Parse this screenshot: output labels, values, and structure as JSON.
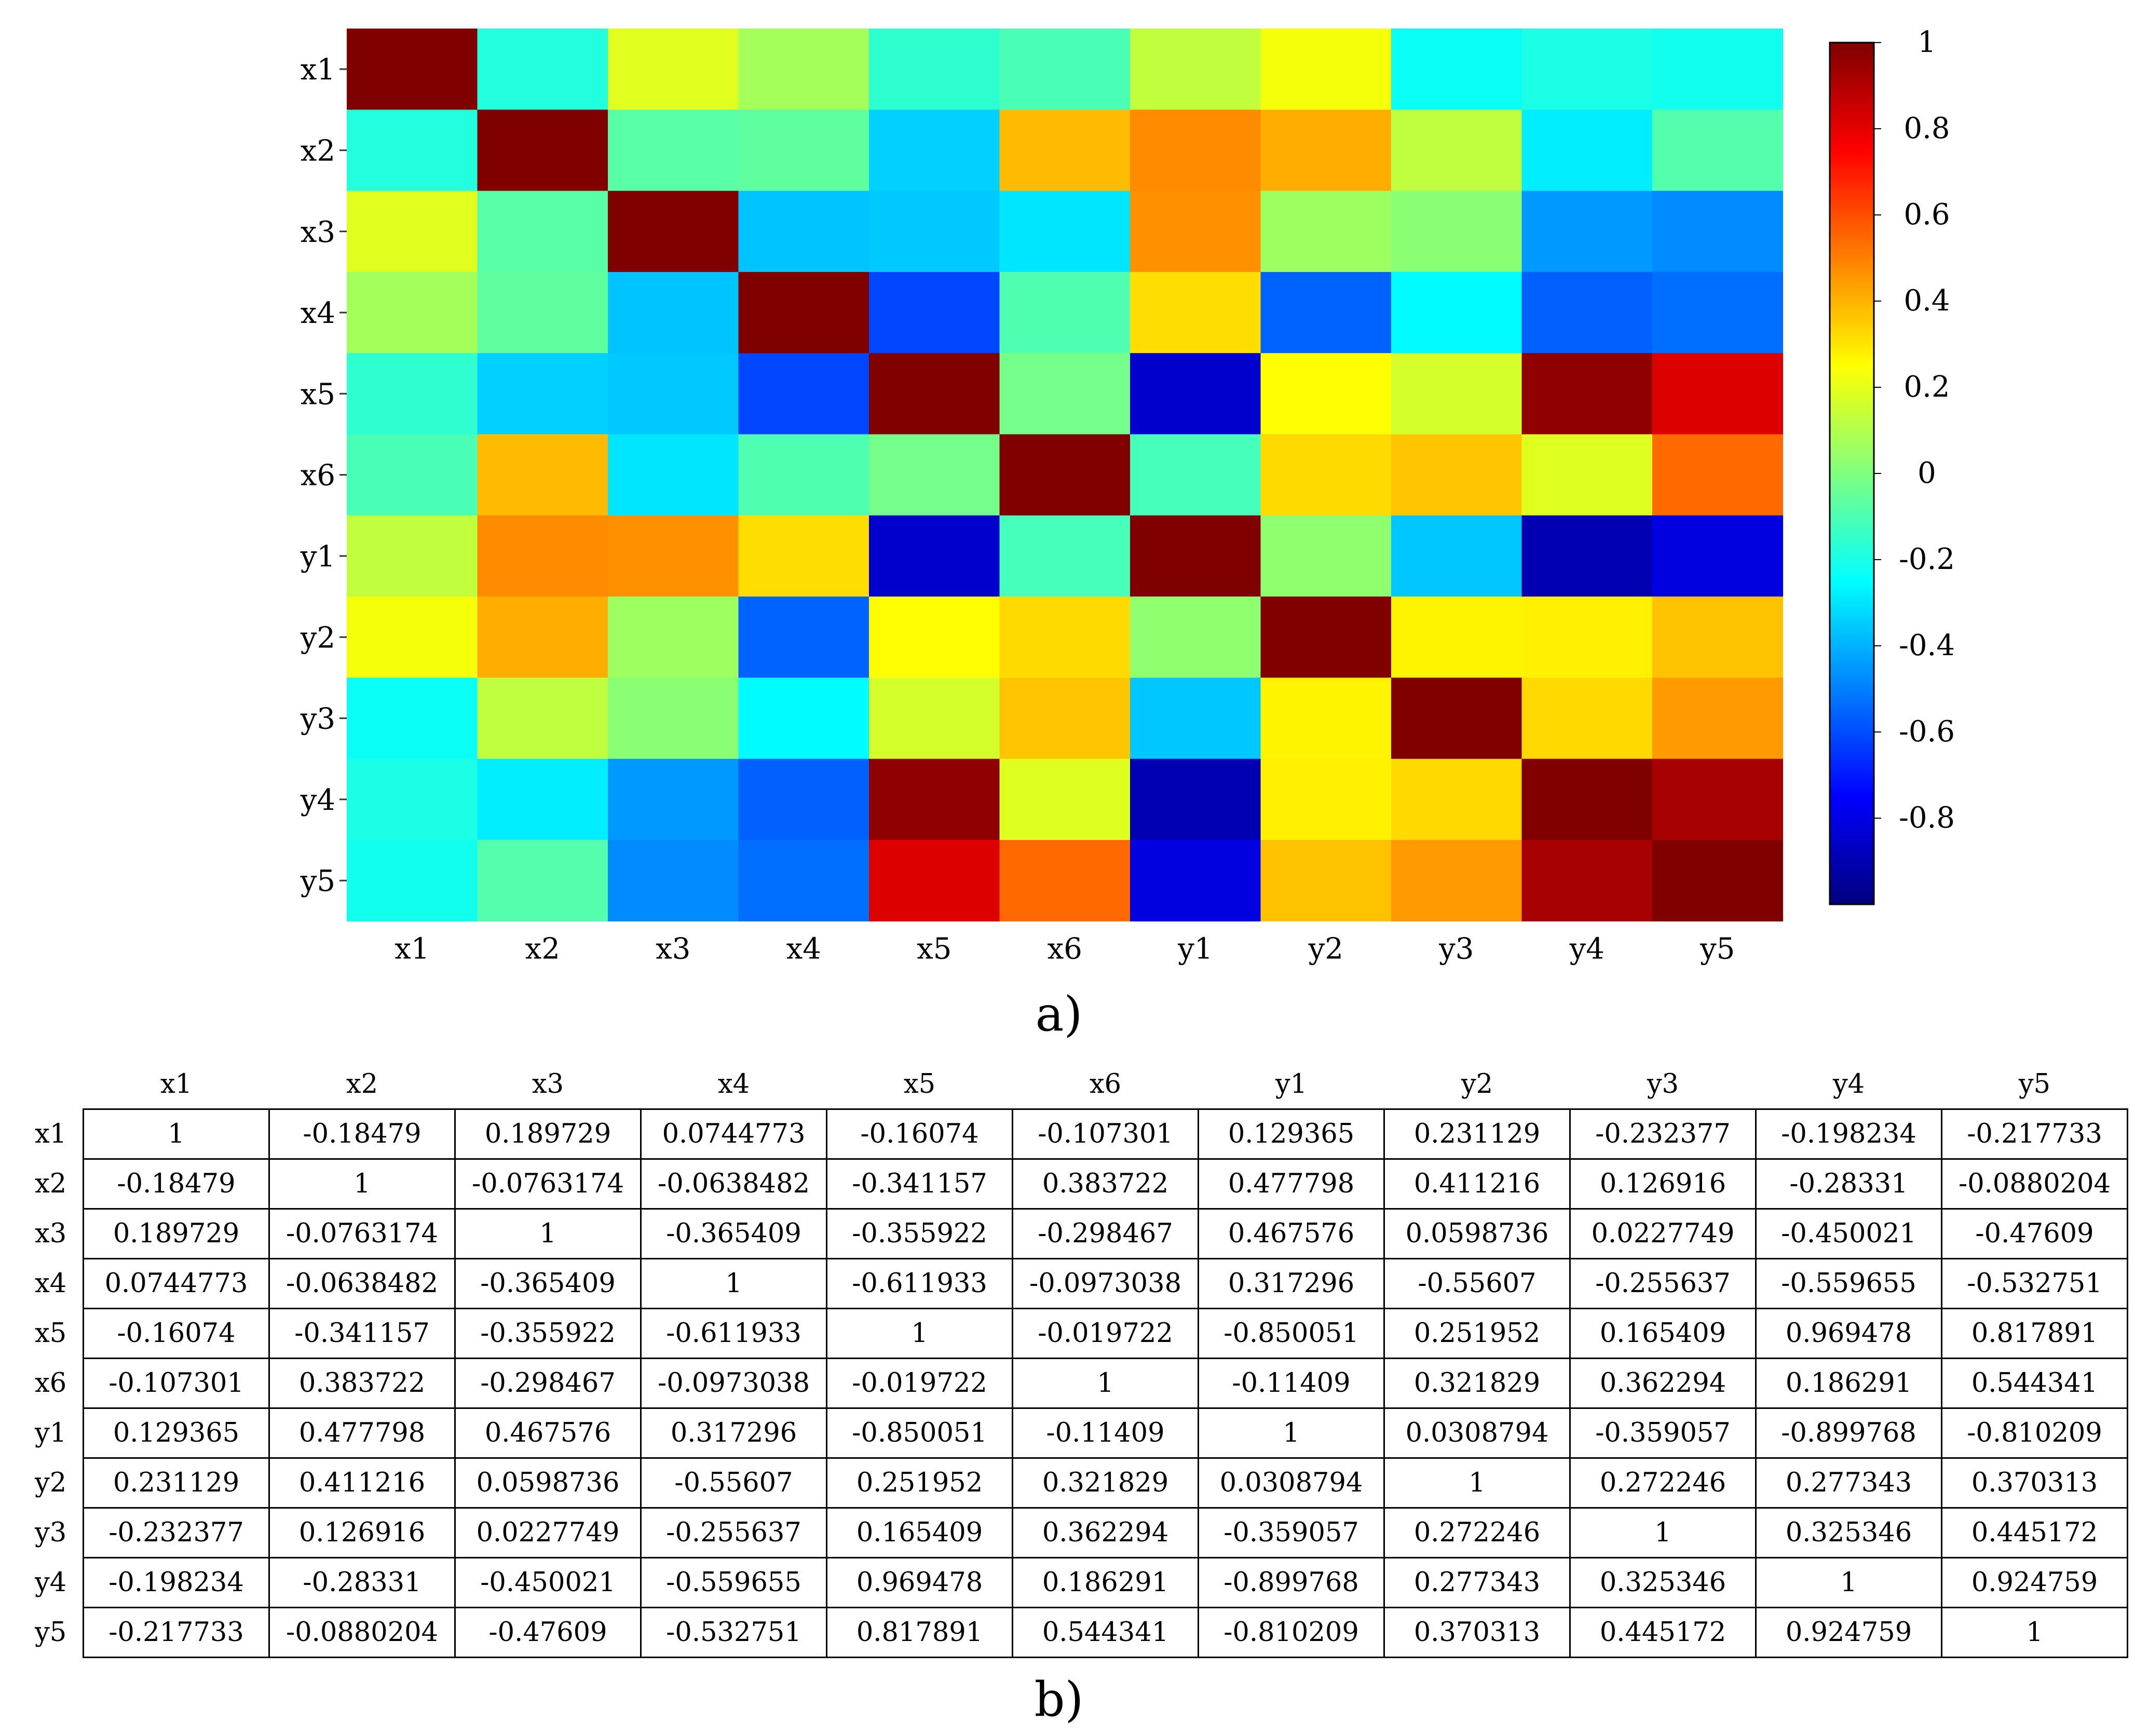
{
  "captions": {
    "a": "a)",
    "b": "b)"
  },
  "chart_data": [
    {
      "type": "heatmap",
      "title": "",
      "xlabel": "",
      "ylabel": "",
      "x_categories": [
        "x1",
        "x2",
        "x3",
        "x4",
        "x5",
        "x6",
        "y1",
        "y2",
        "y3",
        "y4",
        "y5"
      ],
      "y_categories": [
        "x1",
        "x2",
        "x3",
        "x4",
        "x5",
        "x6",
        "y1",
        "y2",
        "y3",
        "y4",
        "y5"
      ],
      "colormap": "jet",
      "color_range": [
        -1,
        1
      ],
      "colorbar_ticks": [
        {
          "value": 1,
          "label": "1"
        },
        {
          "value": 0.8,
          "label": "0.8"
        },
        {
          "value": 0.6,
          "label": "0.6"
        },
        {
          "value": 0.4,
          "label": "0.4"
        },
        {
          "value": 0.2,
          "label": "0.2"
        },
        {
          "value": 0,
          "label": "0"
        },
        {
          "value": -0.2,
          "label": "-0.2"
        },
        {
          "value": -0.4,
          "label": "-0.4"
        },
        {
          "value": -0.6,
          "label": "-0.6"
        },
        {
          "value": -0.8,
          "label": "-0.8"
        }
      ],
      "values": [
        [
          1,
          -0.18479,
          0.189729,
          0.0744773,
          -0.16074,
          -0.107301,
          0.129365,
          0.231129,
          -0.232377,
          -0.198234,
          -0.217733
        ],
        [
          -0.18479,
          1,
          -0.0763174,
          -0.0638482,
          -0.341157,
          0.383722,
          0.477798,
          0.411216,
          0.126916,
          -0.28331,
          -0.0880204
        ],
        [
          0.189729,
          -0.0763174,
          1,
          -0.365409,
          -0.355922,
          -0.298467,
          0.467576,
          0.0598736,
          0.0227749,
          -0.450021,
          -0.47609
        ],
        [
          0.0744773,
          -0.0638482,
          -0.365409,
          1,
          -0.611933,
          -0.0973038,
          0.317296,
          -0.55607,
          -0.255637,
          -0.559655,
          -0.532751
        ],
        [
          -0.16074,
          -0.341157,
          -0.355922,
          -0.611933,
          1,
          -0.019722,
          -0.850051,
          0.251952,
          0.165409,
          0.969478,
          0.817891
        ],
        [
          -0.107301,
          0.383722,
          -0.298467,
          -0.0973038,
          -0.019722,
          1,
          -0.11409,
          0.321829,
          0.362294,
          0.186291,
          0.544341
        ],
        [
          0.129365,
          0.477798,
          0.467576,
          0.317296,
          -0.850051,
          -0.11409,
          1,
          0.0308794,
          -0.359057,
          -0.899768,
          -0.810209
        ],
        [
          0.231129,
          0.411216,
          0.0598736,
          -0.55607,
          0.251952,
          0.321829,
          0.0308794,
          1,
          0.272246,
          0.277343,
          0.370313
        ],
        [
          -0.232377,
          0.126916,
          0.0227749,
          -0.255637,
          0.165409,
          0.362294,
          -0.359057,
          0.272246,
          1,
          0.325346,
          0.445172
        ],
        [
          -0.198234,
          -0.28331,
          -0.450021,
          -0.559655,
          0.969478,
          0.186291,
          -0.899768,
          0.277343,
          0.325346,
          1,
          0.924759
        ],
        [
          -0.217733,
          -0.0880204,
          -0.47609,
          -0.532751,
          0.817891,
          0.544341,
          -0.810209,
          0.370313,
          0.445172,
          0.924759,
          1
        ]
      ]
    },
    {
      "type": "table",
      "columns": [
        "x1",
        "x2",
        "x3",
        "x4",
        "x5",
        "x6",
        "y1",
        "y2",
        "y3",
        "y4",
        "y5"
      ],
      "rows": [
        {
          "label": "x1",
          "cells": [
            "1",
            "-0.18479",
            "0.189729",
            "0.0744773",
            "-0.16074",
            "-0.107301",
            "0.129365",
            "0.231129",
            "-0.232377",
            "-0.198234",
            "-0.217733"
          ]
        },
        {
          "label": "x2",
          "cells": [
            "-0.18479",
            "1",
            "-0.0763174",
            "-0.0638482",
            "-0.341157",
            "0.383722",
            "0.477798",
            "0.411216",
            "0.126916",
            "-0.28331",
            "-0.0880204"
          ]
        },
        {
          "label": "x3",
          "cells": [
            "0.189729",
            "-0.0763174",
            "1",
            "-0.365409",
            "-0.355922",
            "-0.298467",
            "0.467576",
            "0.0598736",
            "0.0227749",
            "-0.450021",
            "-0.47609"
          ]
        },
        {
          "label": "x4",
          "cells": [
            "0.0744773",
            "-0.0638482",
            "-0.365409",
            "1",
            "-0.611933",
            "-0.0973038",
            "0.317296",
            "-0.55607",
            "-0.255637",
            "-0.559655",
            "-0.532751"
          ]
        },
        {
          "label": "x5",
          "cells": [
            "-0.16074",
            "-0.341157",
            "-0.355922",
            "-0.611933",
            "1",
            "-0.019722",
            "-0.850051",
            "0.251952",
            "0.165409",
            "0.969478",
            "0.817891"
          ]
        },
        {
          "label": "x6",
          "cells": [
            "-0.107301",
            "0.383722",
            "-0.298467",
            "-0.0973038",
            "-0.019722",
            "1",
            "-0.11409",
            "0.321829",
            "0.362294",
            "0.186291",
            "0.544341"
          ]
        },
        {
          "label": "y1",
          "cells": [
            "0.129365",
            "0.477798",
            "0.467576",
            "0.317296",
            "-0.850051",
            "-0.11409",
            "1",
            "0.0308794",
            "-0.359057",
            "-0.899768",
            "-0.810209"
          ]
        },
        {
          "label": "y2",
          "cells": [
            "0.231129",
            "0.411216",
            "0.0598736",
            "-0.55607",
            "0.251952",
            "0.321829",
            "0.0308794",
            "1",
            "0.272246",
            "0.277343",
            "0.370313"
          ]
        },
        {
          "label": "y3",
          "cells": [
            "-0.232377",
            "0.126916",
            "0.0227749",
            "-0.255637",
            "0.165409",
            "0.362294",
            "-0.359057",
            "0.272246",
            "1",
            "0.325346",
            "0.445172"
          ]
        },
        {
          "label": "y4",
          "cells": [
            "-0.198234",
            "-0.28331",
            "-0.450021",
            "-0.559655",
            "0.969478",
            "0.186291",
            "-0.899768",
            "0.277343",
            "0.325346",
            "1",
            "0.924759"
          ]
        },
        {
          "label": "y5",
          "cells": [
            "-0.217733",
            "-0.0880204",
            "-0.47609",
            "-0.532751",
            "0.817891",
            "0.544341",
            "-0.810209",
            "0.370313",
            "0.445172",
            "0.924759",
            "1"
          ]
        }
      ]
    }
  ]
}
